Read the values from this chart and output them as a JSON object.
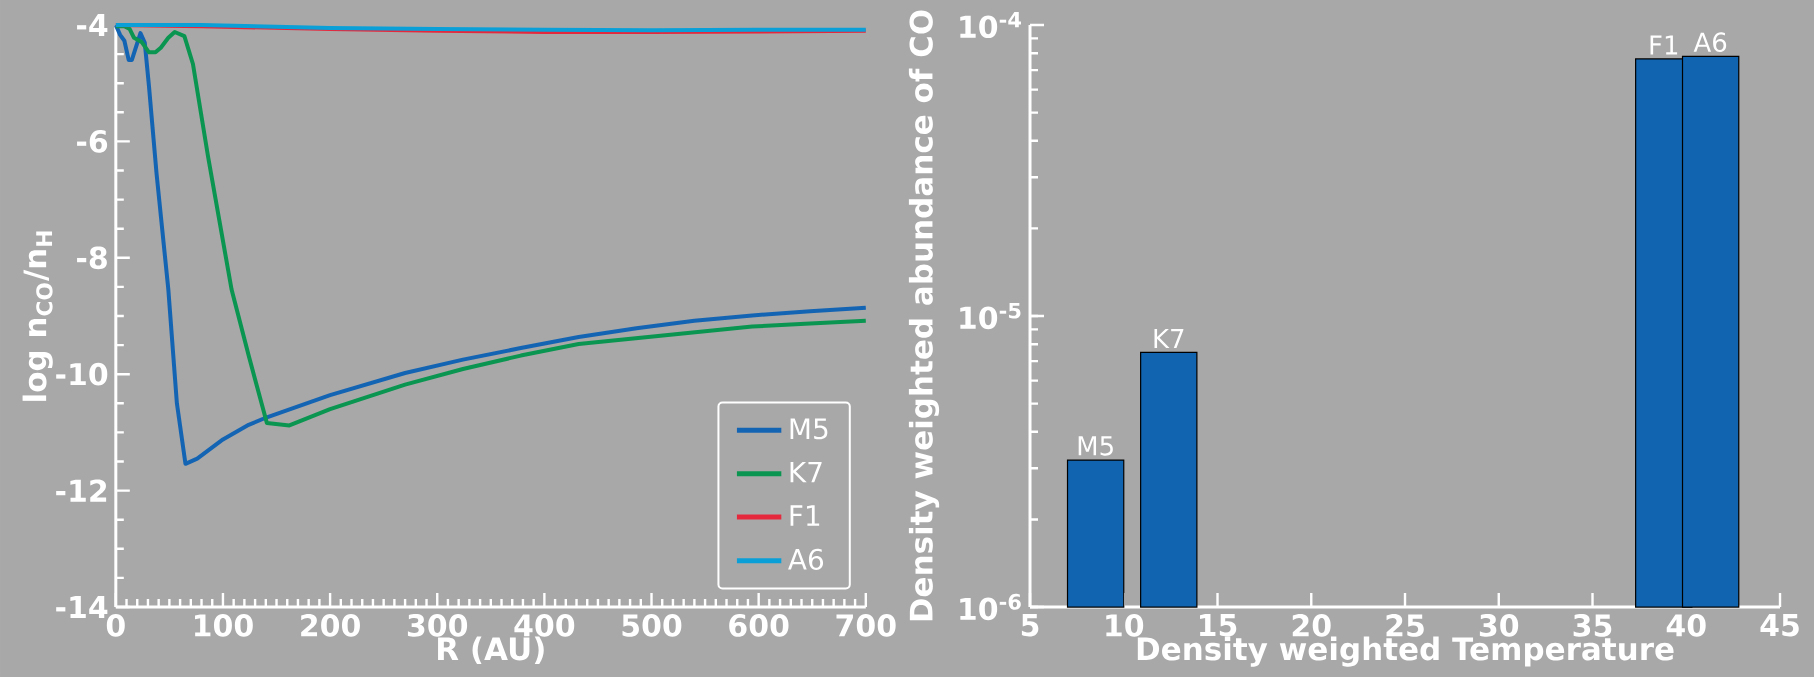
{
  "chart_data": [
    {
      "type": "line",
      "xlabel": "R (AU)",
      "ylabel": "log n$_{CO}$/n$_{H}$",
      "xlim": [
        0,
        700
      ],
      "ylim": [
        -14,
        -4
      ],
      "xticks": [
        0,
        100,
        200,
        300,
        400,
        500,
        600,
        700
      ],
      "yticks": [
        -14,
        -12,
        -10,
        -8,
        -6,
        -4
      ],
      "legend": "bottom right",
      "series": [
        {
          "name": "M5",
          "color": "#1464b4",
          "x": [
            0,
            4,
            8,
            12,
            15,
            23,
            27,
            31,
            38,
            49,
            57,
            65,
            76,
            100,
            124,
            141,
            200,
            270,
            324,
            378,
            432,
            486,
            540,
            594,
            648,
            700
          ],
          "values": [
            -4.0,
            -4.17,
            -4.27,
            -4.6,
            -4.6,
            -4.14,
            -4.3,
            -5.06,
            -6.55,
            -8.54,
            -10.5,
            -11.54,
            -11.45,
            -11.12,
            -10.87,
            -10.74,
            -10.36,
            -9.98,
            -9.75,
            -9.55,
            -9.36,
            -9.21,
            -9.08,
            -8.99,
            -8.92,
            -8.86
          ]
        },
        {
          "name": "K7",
          "color": "#0a9650",
          "x": [
            0,
            8,
            13,
            17,
            24,
            31,
            37,
            42,
            49,
            55,
            64,
            72,
            86,
            108,
            124,
            141,
            162,
            200,
            270,
            324,
            378,
            432,
            486,
            540,
            594,
            648,
            700
          ],
          "values": [
            -4.02,
            -4.02,
            -4.07,
            -4.22,
            -4.29,
            -4.47,
            -4.47,
            -4.39,
            -4.22,
            -4.12,
            -4.19,
            -4.67,
            -6.25,
            -8.54,
            -9.68,
            -10.84,
            -10.88,
            -10.6,
            -10.18,
            -9.91,
            -9.68,
            -9.48,
            -9.38,
            -9.28,
            -9.18,
            -9.13,
            -9.08
          ]
        },
        {
          "name": "F1",
          "color": "#e6283c",
          "x": [
            0,
            80,
            200,
            300,
            400,
            500,
            600,
            700
          ],
          "values": [
            -4.0,
            -4.02,
            -4.07,
            -4.1,
            -4.12,
            -4.12,
            -4.11,
            -4.1
          ]
        },
        {
          "name": "A6",
          "color": "#0aa0d7",
          "x": [
            0,
            80,
            200,
            300,
            400,
            500,
            600,
            700
          ],
          "values": [
            -4.0,
            -4.0,
            -4.05,
            -4.07,
            -4.08,
            -4.09,
            -4.08,
            -4.08
          ]
        }
      ]
    },
    {
      "type": "bar",
      "xlabel": "Density weighted Temperature",
      "ylabel": "Density weighted abundance of CO",
      "log": "y",
      "xlim": [
        5,
        45
      ],
      "ylim": [
        1e-06,
        0.0001
      ],
      "xticks": [
        5,
        10,
        15,
        20,
        25,
        30,
        35,
        40,
        45
      ],
      "yticks": [
        {
          "value": 1e-06,
          "label": "10$^{-6}$"
        },
        {
          "value": 1e-05,
          "label": "10$^{-5}$"
        },
        {
          "value": 0.0001,
          "label": "10$^{-4}$"
        }
      ],
      "x": [
        8.5,
        12.4,
        38.8,
        41.3
      ],
      "values": [
        3.2e-06,
        7.5e-06,
        7.65e-05,
        7.8e-05
      ],
      "color": "#1064b0",
      "annotations": [
        {
          "text": "M5",
          "x": 8.5,
          "y": 3.2e-06
        },
        {
          "text": "K7",
          "x": 12.4,
          "y": 7.5e-06
        },
        {
          "text": "F1",
          "x": 38.8,
          "y": 7.65e-05
        },
        {
          "text": "A6",
          "x": 41.3,
          "y": 7.8e-05
        }
      ]
    }
  ]
}
